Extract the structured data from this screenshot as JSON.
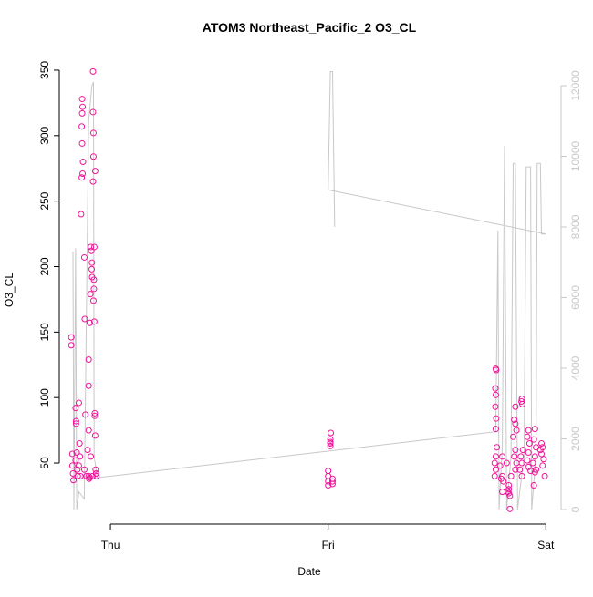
{
  "chart_data": {
    "type": "scatter",
    "title": "ATOM3 Northeast_Pacific_2 O3_CL",
    "xlabel": "Date",
    "ylabel": "O3_CL",
    "color": "#f0149a",
    "x": [
      -0.18,
      -0.18,
      -0.175,
      -0.175,
      -0.172,
      -0.17,
      -0.16,
      -0.158,
      -0.158,
      -0.155,
      -0.16,
      -0.152,
      -0.15,
      -0.145,
      -0.142,
      -0.14,
      -0.145,
      -0.138,
      -0.13,
      -0.128,
      -0.13,
      -0.132,
      -0.13,
      -0.126,
      -0.128,
      -0.132,
      -0.135,
      -0.12,
      -0.118,
      -0.115,
      -0.12,
      -0.11,
      -0.105,
      -0.1,
      -0.095,
      -0.098,
      -0.1,
      -0.1,
      -0.1,
      -0.095,
      -0.092,
      -0.09,
      -0.088,
      -0.085,
      -0.086,
      -0.084,
      -0.082,
      -0.09,
      -0.08,
      -0.08,
      -0.078,
      -0.078,
      -0.08,
      -0.076,
      -0.076,
      -0.078,
      -0.074,
      -0.072,
      -0.07,
      -0.074,
      -0.072,
      -0.07,
      -0.068,
      -0.066,
      -0.064,
      1.0,
      1.0,
      1.0,
      1.0,
      1.01,
      1.01,
      1.01,
      1.01,
      1.012,
      1.02,
      1.02,
      1.02,
      1.77,
      1.772,
      1.768,
      1.77,
      1.768,
      1.772,
      1.77,
      1.775,
      1.77,
      1.765,
      1.77,
      1.765,
      1.8,
      1.79,
      1.8,
      1.795,
      1.805,
      1.8,
      1.83,
      1.835,
      1.825,
      1.83,
      1.84,
      1.82,
      1.835,
      1.83,
      1.86,
      1.855,
      1.86,
      1.865,
      1.85,
      1.86,
      1.855,
      1.865,
      1.86,
      1.89,
      1.888,
      1.892,
      1.895,
      1.885,
      1.89,
      1.88,
      1.89,
      1.92,
      1.915,
      1.925,
      1.92,
      1.915,
      1.92,
      1.93,
      1.95,
      1.945,
      1.955,
      1.95,
      1.94,
      1.955,
      1.95,
      1.945,
      1.98,
      1.985,
      1.975,
      1.98,
      1.99,
      1.985,
      1.995
    ],
    "values": [
      146,
      140,
      57,
      48,
      42,
      37,
      92,
      82,
      80,
      58,
      52,
      45,
      40,
      96,
      65,
      55,
      48,
      40,
      328,
      322,
      317,
      307,
      294,
      280,
      271,
      268,
      240,
      207,
      160,
      87,
      45,
      40,
      60,
      40,
      39,
      38,
      75,
      109,
      129,
      157,
      179,
      215,
      212,
      203,
      198,
      192,
      40,
      55,
      349,
      318,
      302,
      284,
      265,
      190,
      183,
      174,
      158,
      88,
      273,
      215,
      86,
      71,
      45,
      42,
      40,
      44,
      40,
      36,
      33,
      66,
      68,
      65,
      63,
      73,
      38,
      34,
      36,
      122,
      121,
      107,
      102,
      93,
      84,
      76,
      62,
      55,
      50,
      45,
      40,
      55,
      48,
      40,
      38,
      36,
      28,
      27,
      25,
      28,
      33,
      40,
      50,
      15,
      30,
      93,
      83,
      80,
      75,
      70,
      60,
      55,
      50,
      45,
      99,
      97,
      95,
      60,
      55,
      50,
      45,
      40,
      75,
      70,
      65,
      58,
      52,
      47,
      44,
      76,
      68,
      62,
      55,
      50,
      45,
      43,
      33,
      65,
      62,
      60,
      57,
      53,
      48,
      40
    ],
    "line": {
      "axis": "y2",
      "color": "#c8c8c8",
      "x": [
        -0.172,
        -0.168,
        -0.16,
        -0.155,
        -0.145,
        -0.12,
        -0.1,
        -0.085,
        -0.078,
        -0.075,
        -0.06,
        1.77,
        1.78,
        1.785,
        1.8,
        1.81,
        1.82,
        1.84,
        1.85,
        1.86,
        1.87,
        1.9,
        1.91,
        1.93,
        1.935,
        1.955,
        1.96,
        1.975,
        1.98,
        2.0,
        1.0,
        1.01,
        1.02,
        1.03
      ],
      "values": [
        7300,
        0,
        7400,
        0,
        500,
        300,
        11000,
        12000,
        12100,
        1500,
        900,
        2200,
        7900,
        0,
        1800,
        10300,
        0,
        1500,
        9800,
        9800,
        0,
        1500,
        9700,
        9700,
        0,
        1600,
        9800,
        9800,
        7800,
        7800,
        9050,
        12400,
        12400,
        8000
      ]
    },
    "xlim": [
      -0.235,
      2.07
    ],
    "xticks": [
      {
        "value": 0,
        "label": "Thu"
      },
      {
        "value": 1,
        "label": "Fri"
      },
      {
        "value": 2,
        "label": "Sat"
      }
    ],
    "ylim": [
      3.4,
      361.8
    ],
    "yticks": [
      50,
      100,
      150,
      200,
      250,
      300,
      350
    ],
    "y2lim": [
      -413,
      12877
    ],
    "y2ticks": [
      0,
      2000,
      4000,
      6000,
      8000,
      10000,
      12000
    ],
    "y2color": "#c8c8c8"
  }
}
